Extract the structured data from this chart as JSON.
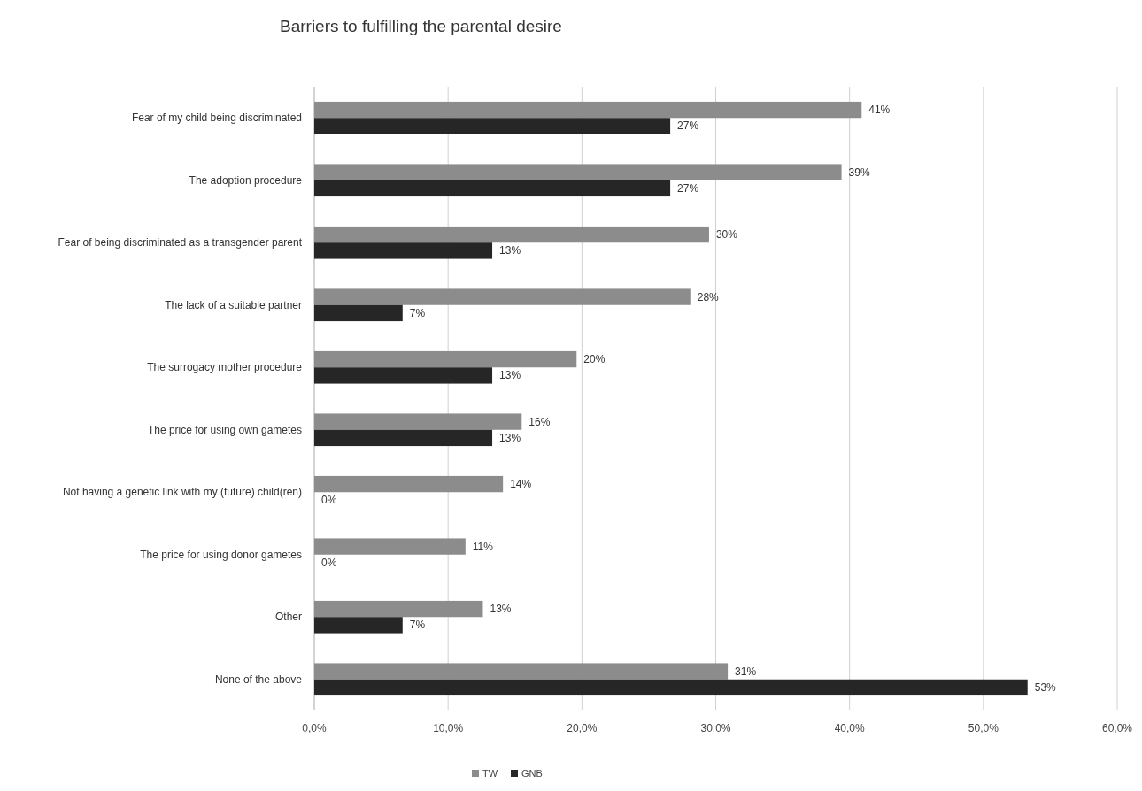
{
  "chart_data": {
    "type": "bar",
    "orientation": "horizontal",
    "title": "Barriers to fulfilling the parental desire",
    "categories": [
      "Fear of my child being discriminated",
      "The adoption procedure",
      "Fear of being discriminated as a transgender parent",
      "The lack of a suitable partner",
      "The surrogacy mother procedure",
      "The price for using own gametes",
      "Not having a genetic link with my (future) child(ren)",
      "The price for using donor gametes",
      "Other",
      "None of the above"
    ],
    "series": [
      {
        "name": "TW",
        "color": "#8c8c8c",
        "values": [
          40.9,
          39.4,
          29.5,
          28.1,
          19.6,
          15.5,
          14.1,
          11.3,
          12.6,
          30.9
        ],
        "value_labels": [
          "41%",
          "39%",
          "30%",
          "28%",
          "20%",
          "16%",
          "14%",
          "11%",
          "13%",
          "31%"
        ]
      },
      {
        "name": "GNB",
        "color": "#262626",
        "values": [
          26.6,
          26.6,
          13.3,
          6.6,
          13.3,
          13.3,
          0,
          0,
          6.6,
          53.3
        ],
        "value_labels": [
          "27%",
          "27%",
          "13%",
          "7%",
          "13%",
          "13%",
          "0%",
          "0%",
          "7%",
          "53%"
        ]
      }
    ],
    "xlim": [
      0,
      60
    ],
    "xticks": [
      {
        "value": 0,
        "label": "0,0%"
      },
      {
        "value": 10,
        "label": "10,0%"
      },
      {
        "value": 20,
        "label": "20,0%"
      },
      {
        "value": 30,
        "label": "30,0%"
      },
      {
        "value": 40,
        "label": "40,0%"
      },
      {
        "value": 50,
        "label": "50,0%"
      },
      {
        "value": 60,
        "label": "60,0%"
      }
    ],
    "grid": "x",
    "legend": "bottom"
  }
}
